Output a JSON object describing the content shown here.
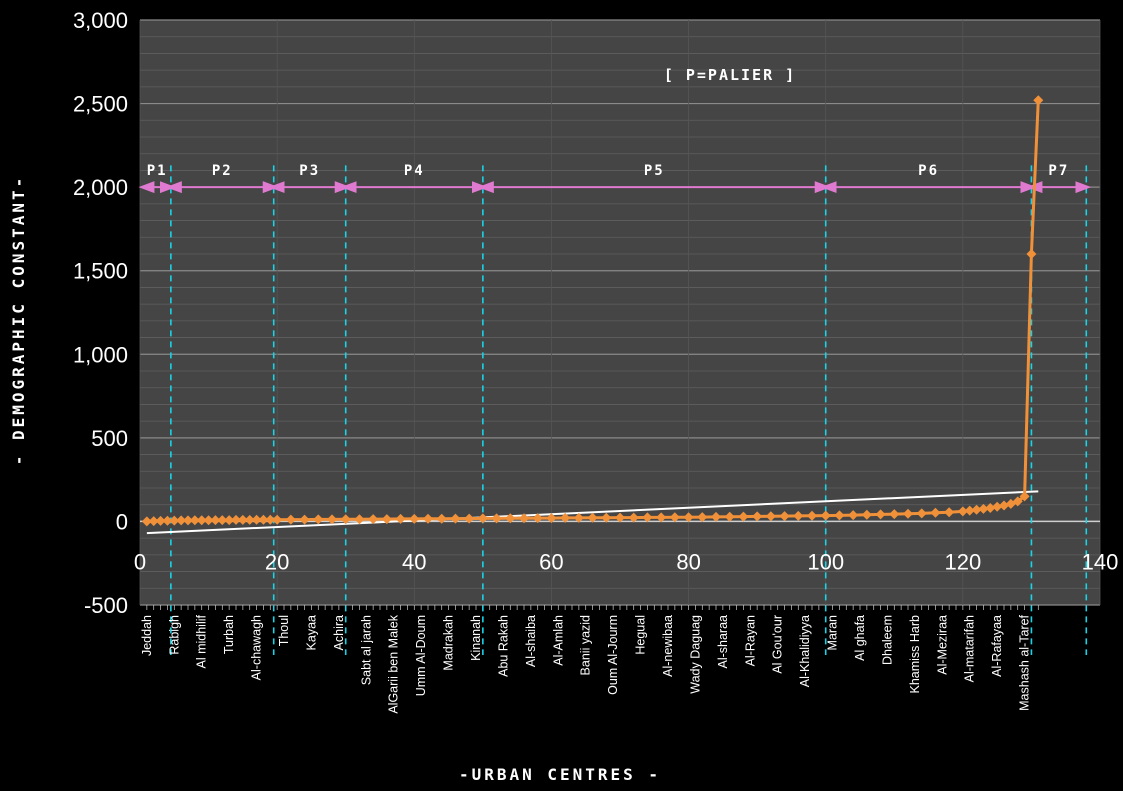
{
  "chart_data": {
    "type": "line",
    "xlabel": "-URBAN CENTRES -",
    "ylabel": "- DEMOGRAPHIC CONSTANT-",
    "annotation": "[ P=PALIER ]",
    "xlim": [
      0,
      140
    ],
    "ylim": [
      -500,
      3000
    ],
    "x_ticks": [
      0,
      20,
      40,
      60,
      80,
      100,
      120,
      140
    ],
    "x_tick_labels": [
      "0",
      "20",
      "40",
      "60",
      "80",
      "100",
      "120",
      "140"
    ],
    "y_ticks": [
      -500,
      0,
      500,
      1000,
      1500,
      2000,
      2500,
      3000
    ],
    "y_tick_labels": [
      "-500",
      "0",
      "500",
      "1,000",
      "1,500",
      "2,000",
      "2,500",
      "3,000"
    ],
    "grid": true,
    "categories": [
      {
        "x": 1,
        "label": "Jeddah"
      },
      {
        "x": 5,
        "label": "Rabigh"
      },
      {
        "x": 9,
        "label": "Al midhilif"
      },
      {
        "x": 13,
        "label": "Turbah"
      },
      {
        "x": 17,
        "label": "Al-chawagh"
      },
      {
        "x": 21,
        "label": "Thoul"
      },
      {
        "x": 25,
        "label": "Kayaa"
      },
      {
        "x": 29,
        "label": "Achira"
      },
      {
        "x": 33,
        "label": "Sabt al jarah"
      },
      {
        "x": 37,
        "label": "AlGarii ben Malek"
      },
      {
        "x": 41,
        "label": "Umm Al-Doum"
      },
      {
        "x": 45,
        "label": "Madrakah"
      },
      {
        "x": 49,
        "label": "Kinanah"
      },
      {
        "x": 53,
        "label": "Abu Rakah"
      },
      {
        "x": 57,
        "label": "Al-shaiba"
      },
      {
        "x": 61,
        "label": "Al-Amlah"
      },
      {
        "x": 65,
        "label": "Banii yazid"
      },
      {
        "x": 69,
        "label": "Oum Al-Jourm"
      },
      {
        "x": 73,
        "label": "Hegual"
      },
      {
        "x": 77,
        "label": "Al-newibaa"
      },
      {
        "x": 81,
        "label": "Wady Daguag"
      },
      {
        "x": 85,
        "label": "Al-sharaa"
      },
      {
        "x": 89,
        "label": "Al-Rayan"
      },
      {
        "x": 93,
        "label": "Al Gou'our"
      },
      {
        "x": 97,
        "label": "Al-Khalidiyya"
      },
      {
        "x": 101,
        "label": "Maran"
      },
      {
        "x": 105,
        "label": "Al ghafa"
      },
      {
        "x": 109,
        "label": "Dhaleem"
      },
      {
        "x": 113,
        "label": "Khamiss Harb"
      },
      {
        "x": 117,
        "label": "Al-Meziraa"
      },
      {
        "x": 121,
        "label": "Al-matarifah"
      },
      {
        "x": 125,
        "label": "Al-Rafayaa"
      },
      {
        "x": 129,
        "label": "Mashash al-Taref"
      }
    ],
    "phases": [
      {
        "label": "P1",
        "x0": 0.5,
        "x1": 4.5
      },
      {
        "label": "P2",
        "x0": 4.5,
        "x1": 19.5
      },
      {
        "label": "P3",
        "x0": 19.5,
        "x1": 30
      },
      {
        "label": "P4",
        "x0": 30,
        "x1": 50
      },
      {
        "label": "P5",
        "x0": 50,
        "x1": 100
      },
      {
        "label": "P6",
        "x0": 100,
        "x1": 130
      },
      {
        "label": "P7",
        "x0": 130,
        "x1": 138
      }
    ],
    "phase_arrow_y": 2000,
    "boundaries": [
      4.5,
      19.5,
      30,
      50,
      100,
      130,
      138
    ],
    "series": [
      {
        "color": "#f0913a",
        "points": [
          [
            1,
            0
          ],
          [
            2,
            2
          ],
          [
            3,
            3
          ],
          [
            4,
            4
          ],
          [
            5,
            5
          ],
          [
            6,
            6
          ],
          [
            7,
            6
          ],
          [
            8,
            7
          ],
          [
            9,
            7
          ],
          [
            10,
            7
          ],
          [
            11,
            8
          ],
          [
            12,
            8
          ],
          [
            13,
            8
          ],
          [
            14,
            9
          ],
          [
            15,
            9
          ],
          [
            16,
            9
          ],
          [
            17,
            10
          ],
          [
            18,
            10
          ],
          [
            19,
            10
          ],
          [
            20,
            10
          ],
          [
            22,
            11
          ],
          [
            24,
            11
          ],
          [
            26,
            12
          ],
          [
            28,
            12
          ],
          [
            30,
            13
          ],
          [
            32,
            13
          ],
          [
            34,
            14
          ],
          [
            36,
            14
          ],
          [
            38,
            15
          ],
          [
            40,
            15
          ],
          [
            42,
            16
          ],
          [
            44,
            16
          ],
          [
            46,
            17
          ],
          [
            48,
            17
          ],
          [
            50,
            18
          ],
          [
            52,
            18
          ],
          [
            54,
            19
          ],
          [
            56,
            19
          ],
          [
            58,
            20
          ],
          [
            60,
            20
          ],
          [
            62,
            21
          ],
          [
            64,
            21
          ],
          [
            66,
            22
          ],
          [
            68,
            22
          ],
          [
            70,
            23
          ],
          [
            72,
            23
          ],
          [
            74,
            24
          ],
          [
            76,
            24
          ],
          [
            78,
            25
          ],
          [
            80,
            25
          ],
          [
            82,
            26
          ],
          [
            84,
            27
          ],
          [
            86,
            28
          ],
          [
            88,
            29
          ],
          [
            90,
            30
          ],
          [
            92,
            31
          ],
          [
            94,
            32
          ],
          [
            96,
            33
          ],
          [
            98,
            34
          ],
          [
            100,
            35
          ],
          [
            102,
            36
          ],
          [
            104,
            38
          ],
          [
            106,
            40
          ],
          [
            108,
            42
          ],
          [
            110,
            44
          ],
          [
            112,
            46
          ],
          [
            114,
            48
          ],
          [
            116,
            52
          ],
          [
            118,
            55
          ],
          [
            120,
            60
          ],
          [
            121,
            65
          ],
          [
            122,
            70
          ],
          [
            123,
            75
          ],
          [
            124,
            80
          ],
          [
            125,
            88
          ],
          [
            126,
            95
          ],
          [
            127,
            105
          ],
          [
            128,
            120
          ],
          [
            129,
            150
          ],
          [
            130,
            1600
          ],
          [
            131,
            2520
          ]
        ]
      }
    ],
    "trendline": {
      "color": "#ffffff",
      "x": [
        1,
        131
      ],
      "y": [
        -70,
        180
      ]
    }
  }
}
